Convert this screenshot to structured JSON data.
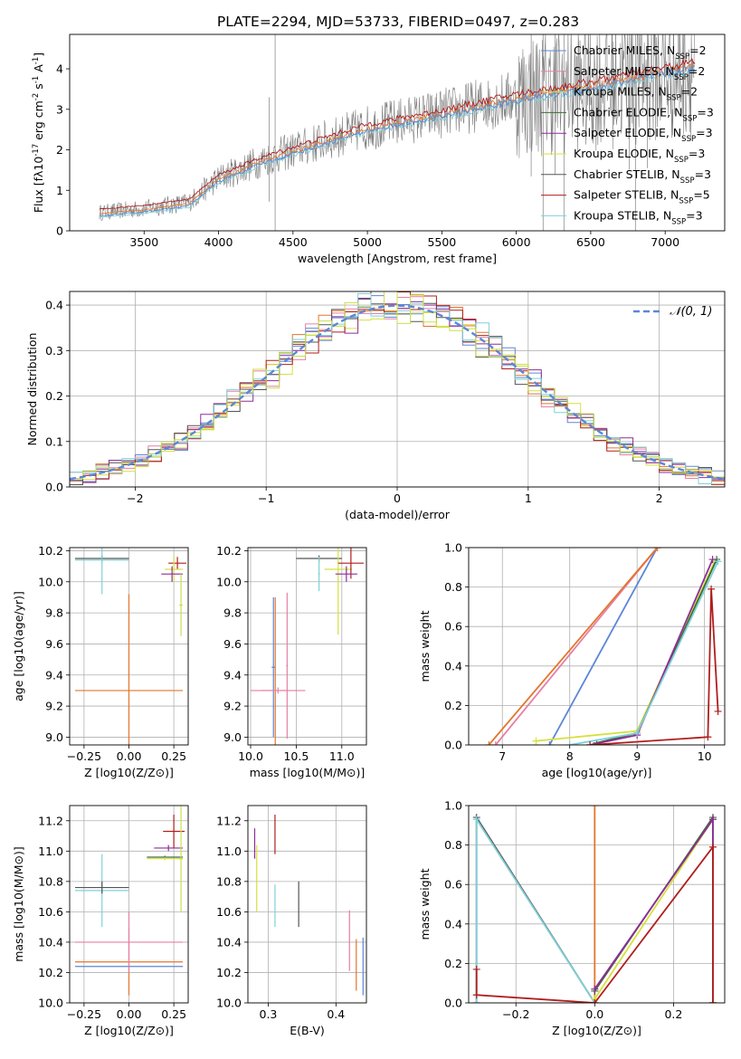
{
  "figure_title": "PLATE=2294, MJD=53733, FIBERID=0497, z=0.283",
  "colors": {
    "chabrier_miles": "#5b87d6",
    "salpeter_miles": "#e67fa6",
    "kroupa_miles": "#c8e04a",
    "chabrier_elodie": "#3e6b38",
    "salpeter_elodie": "#8e2c9a",
    "kroupa_elodie": "#d7e03c",
    "chabrier_stelib": "#555555",
    "salpeter_stelib": "#b01e1e",
    "kroupa_stelib": "#7fd0d8",
    "orange": "#e2762c",
    "data_gray": "#7f7f7f",
    "gaussian": "#5b87d6",
    "grid": "#b0b0b0"
  },
  "chart_data": [
    {
      "id": "spectrum",
      "type": "line",
      "title": "PLATE=2294, MJD=53733, FIBERID=0497, z=0.283",
      "xlabel": "wavelength [Angstrom, rest frame]",
      "ylabel": "Flux [f_λ 10^-17 erg cm^-2 s^-1 A^-1]",
      "xlim": [
        3000,
        7400
      ],
      "ylim": [
        0,
        4.85
      ],
      "xticks": [
        "3500",
        "4000",
        "4500",
        "5000",
        "5500",
        "6000",
        "6500",
        "7000"
      ],
      "yticks": [
        "0",
        "1",
        "2",
        "3",
        "4"
      ],
      "grid": false,
      "legend": "top-right",
      "legend_entries": [
        {
          "name": "Chabrier MILES, N_SSP=2",
          "color_key": "chabrier_miles"
        },
        {
          "name": "Salpeter MILES, N_SSP=2",
          "color_key": "salpeter_miles"
        },
        {
          "name": "Kroupa MILES, N_SSP=2",
          "color_key": "kroupa_miles"
        },
        {
          "name": "Chabrier ELODIE, N_SSP=3",
          "color_key": "chabrier_elodie"
        },
        {
          "name": "Salpeter ELODIE, N_SSP=3",
          "color_key": "salpeter_elodie"
        },
        {
          "name": "Kroupa ELODIE, N_SSP=3",
          "color_key": "kroupa_elodie"
        },
        {
          "name": "Chabrier STELIB, N_SSP=3",
          "color_key": "chabrier_stelib"
        },
        {
          "name": "Salpeter STELIB, N_SSP=5",
          "color_key": "salpeter_stelib"
        },
        {
          "name": "Kroupa STELIB, N_SSP=3",
          "color_key": "kroupa_stelib"
        }
      ],
      "data_range": [
        3200,
        7200
      ],
      "model_curve": {
        "x": [
          3200,
          3500,
          3800,
          4000,
          4300,
          4600,
          5000,
          5500,
          6000,
          6500,
          7000,
          7200
        ],
        "y": [
          0.45,
          0.55,
          0.7,
          1.3,
          1.75,
          2.1,
          2.55,
          2.9,
          3.3,
          3.6,
          3.95,
          4.1
        ]
      }
    },
    {
      "id": "residuals",
      "type": "line",
      "xlabel": "(data-model)/error",
      "ylabel": "Normed distribution",
      "xlim": [
        -2.5,
        2.5
      ],
      "ylim": [
        0,
        0.43
      ],
      "xticks": [
        "−2",
        "−1",
        "0",
        "1",
        "2"
      ],
      "yticks": [
        "0.0",
        "0.1",
        "0.2",
        "0.3",
        "0.4"
      ],
      "grid": true,
      "legend": "top-right",
      "legend_label": "𝒩(0, 1)",
      "bin_width": 0.1
    },
    {
      "id": "Z_vs_age",
      "type": "scatter",
      "xlabel": "Z [log10(Z/Z⊙)]",
      "ylabel": "age  [log10(age/yr)]",
      "xlim": [
        -0.33,
        0.33
      ],
      "ylim": [
        8.95,
        10.22
      ],
      "xticks": [
        "−0.25",
        "0.00",
        "0.25"
      ],
      "yticks": [
        "9.0",
        "9.2",
        "9.4",
        "9.6",
        "9.8",
        "10.0",
        "10.2"
      ],
      "grid": true,
      "points": [
        {
          "x": 0.0,
          "xerr": 0.3,
          "y": 9.3,
          "yerr": 0.62,
          "color_key": "orange"
        },
        {
          "x": -0.15,
          "xerr": 0.15,
          "y": 10.15,
          "yerr": 0.02,
          "color_key": "chabrier_stelib"
        },
        {
          "x": -0.15,
          "xerr": 0.15,
          "y": 10.14,
          "yerr": 0.22,
          "color_key": "kroupa_stelib"
        },
        {
          "x": 0.27,
          "xerr": 0.05,
          "y": 10.12,
          "yerr": 0.04,
          "color_key": "salpeter_stelib"
        },
        {
          "x": 0.25,
          "xerr": 0.05,
          "y": 10.08,
          "yerr": 0.08,
          "color_key": "kroupa_elodie"
        },
        {
          "x": 0.24,
          "xerr": 0.06,
          "y": 10.05,
          "yerr": 0.05,
          "color_key": "salpeter_elodie"
        },
        {
          "x": 0.29,
          "xerr": 0.01,
          "y": 9.85,
          "yerr": 0.2,
          "color_key": "kroupa_miles"
        }
      ]
    },
    {
      "id": "mass_vs_age",
      "type": "scatter",
      "xlabel": "mass [log10(M/M⊙)]",
      "ylabel": "",
      "xlim": [
        9.97,
        11.27
      ],
      "ylim": [
        8.95,
        10.22
      ],
      "xticks": [
        "10.0",
        "10.5",
        "11.0"
      ],
      "yticks": [
        "9.0",
        "9.2",
        "9.4",
        "9.6",
        "9.8",
        "10.0",
        "10.2"
      ],
      "grid": true,
      "points": [
        {
          "x": 10.25,
          "xerr": 0.02,
          "y": 9.45,
          "yerr": 0.45,
          "color_key": "chabrier_miles"
        },
        {
          "x": 10.27,
          "xerr": 0.15,
          "y": 9.3,
          "yerr": 0.6,
          "color_key": "orange"
        },
        {
          "x": 10.3,
          "xerr": 0.3,
          "y": 9.3,
          "yerr": 0.02,
          "color_key": "salpeter_miles"
        },
        {
          "x": 10.4,
          "xerr": 0.01,
          "y": 9.46,
          "yerr": 0.47,
          "color_key": "salpeter_miles"
        },
        {
          "x": 10.75,
          "xerr": 0.25,
          "y": 10.15,
          "yerr": 0.02,
          "color_key": "chabrier_stelib"
        },
        {
          "x": 10.75,
          "xerr": 0.01,
          "y": 10.05,
          "yerr": 0.11,
          "color_key": "kroupa_stelib"
        },
        {
          "x": 10.96,
          "xerr": 0.15,
          "y": 10.08,
          "yerr": 0.42,
          "color_key": "kroupa_elodie"
        },
        {
          "x": 11.1,
          "xerr": 0.14,
          "y": 10.12,
          "yerr": 0.1,
          "color_key": "salpeter_stelib"
        },
        {
          "x": 11.05,
          "xerr": 0.12,
          "y": 10.05,
          "yerr": 0.05,
          "color_key": "salpeter_elodie"
        }
      ]
    },
    {
      "id": "age_vs_weight",
      "type": "line",
      "xlabel": "age  [log10(age/yr)]",
      "ylabel": "mass weight",
      "xlim": [
        6.5,
        10.3
      ],
      "ylim": [
        0,
        1.0
      ],
      "xticks": [
        "7",
        "8",
        "9",
        "10"
      ],
      "yticks": [
        "0.0",
        "0.2",
        "0.4",
        "0.6",
        "0.8",
        "1.0"
      ],
      "grid": true,
      "series": [
        {
          "color_key": "chabrier_miles",
          "x": [
            7.7,
            9.3
          ],
          "y": [
            0.0,
            1.0
          ]
        },
        {
          "color_key": "salpeter_miles",
          "x": [
            6.9,
            9.3
          ],
          "y": [
            0.0,
            1.0
          ]
        },
        {
          "color_key": "orange",
          "x": [
            6.8,
            9.3
          ],
          "y": [
            0.0,
            1.0
          ]
        },
        {
          "color_key": "kroupa_elodie",
          "x": [
            7.5,
            9.0,
            10.15
          ],
          "y": [
            0.02,
            0.07,
            0.93
          ]
        },
        {
          "color_key": "chabrier_elodie",
          "x": [
            8.4,
            9.0,
            10.18
          ],
          "y": [
            0.01,
            0.06,
            0.94
          ]
        },
        {
          "color_key": "salpeter_elodie",
          "x": [
            8.3,
            9.0,
            10.12
          ],
          "y": [
            0.0,
            0.05,
            0.94
          ]
        },
        {
          "color_key": "kroupa_stelib",
          "x": [
            8.0,
            9.0,
            10.2
          ],
          "y": [
            0.0,
            0.06,
            0.93
          ]
        },
        {
          "color_key": "salpeter_stelib",
          "x": [
            8.3,
            10.05,
            10.1,
            10.2
          ],
          "y": [
            0.0,
            0.04,
            0.79,
            0.17
          ]
        }
      ]
    },
    {
      "id": "Z_vs_mass",
      "type": "scatter",
      "xlabel": "Z [log10(Z/Z⊙)]",
      "ylabel": "mass [log10(M/M⊙)]",
      "xlim": [
        -0.33,
        0.33
      ],
      "ylim": [
        10.0,
        11.3
      ],
      "xticks": [
        "−0.25",
        "0.00",
        "0.25"
      ],
      "yticks": [
        "10.0",
        "10.2",
        "10.4",
        "10.6",
        "10.8",
        "11.0",
        "11.2"
      ],
      "grid": true,
      "points": [
        {
          "x": 0.0,
          "xerr": 0.3,
          "y": 10.24,
          "yerr": 0.01,
          "color_key": "chabrier_miles"
        },
        {
          "x": 0.0,
          "xerr": 0.3,
          "y": 10.27,
          "yerr": 0.22,
          "color_key": "orange"
        },
        {
          "x": 0.0,
          "xerr": 0.3,
          "y": 10.4,
          "yerr": 0.2,
          "color_key": "salpeter_miles"
        },
        {
          "x": -0.15,
          "xerr": 0.15,
          "y": 10.74,
          "yerr": 0.24,
          "color_key": "kroupa_stelib"
        },
        {
          "x": -0.15,
          "xerr": 0.15,
          "y": 10.76,
          "yerr": 0.04,
          "color_key": "chabrier_stelib"
        },
        {
          "x": 0.25,
          "xerr": 0.06,
          "y": 11.13,
          "yerr": 0.11,
          "color_key": "salpeter_stelib"
        },
        {
          "x": 0.22,
          "xerr": 0.08,
          "y": 11.02,
          "yerr": 0.02,
          "color_key": "salpeter_elodie"
        },
        {
          "x": 0.2,
          "xerr": 0.1,
          "y": 10.96,
          "yerr": 0.01,
          "color_key": "chabrier_elodie"
        },
        {
          "x": 0.2,
          "xerr": 0.1,
          "y": 10.95,
          "yerr": 0.01,
          "color_key": "kroupa_elodie"
        },
        {
          "x": 0.29,
          "xerr": 0.01,
          "y": 10.95,
          "yerr": 0.35,
          "color_key": "kroupa_miles"
        }
      ]
    },
    {
      "id": "ebv_vs_mass",
      "type": "scatter",
      "xlabel": "E(B-V)",
      "ylabel": "",
      "xlim": [
        0.27,
        0.445
      ],
      "ylim": [
        10.0,
        11.3
      ],
      "xticks": [
        "0.3",
        "0.4"
      ],
      "yticks": [
        "10.0",
        "10.2",
        "10.4",
        "10.6",
        "10.8",
        "11.0",
        "11.2"
      ],
      "grid": true,
      "points": [
        {
          "x": 0.28,
          "yerr": 0.1,
          "y": 11.05,
          "color_key": "salpeter_elodie"
        },
        {
          "x": 0.283,
          "yerr": 0.22,
          "y": 10.82,
          "color_key": "kroupa_elodie"
        },
        {
          "x": 0.31,
          "yerr": 0.13,
          "y": 11.11,
          "color_key": "salpeter_stelib"
        },
        {
          "x": 0.31,
          "yerr": 0.14,
          "y": 10.64,
          "color_key": "kroupa_stelib"
        },
        {
          "x": 0.345,
          "yerr": 0.15,
          "y": 10.65,
          "color_key": "chabrier_stelib"
        },
        {
          "x": 0.42,
          "yerr": 0.2,
          "y": 10.41,
          "color_key": "salpeter_miles"
        },
        {
          "x": 0.43,
          "yerr": 0.17,
          "y": 10.25,
          "color_key": "orange"
        },
        {
          "x": 0.44,
          "yerr": 0.19,
          "y": 10.24,
          "color_key": "chabrier_miles"
        }
      ]
    },
    {
      "id": "Z_vs_weight",
      "type": "line",
      "xlabel": "Z [log10(Z/Z⊙)]",
      "ylabel": "mass weight",
      "xlim": [
        -0.32,
        0.33
      ],
      "ylim": [
        0,
        1.0
      ],
      "xticks": [
        "−0.2",
        "0.0",
        "0.2"
      ],
      "yticks": [
        "0.0",
        "0.2",
        "0.4",
        "0.6",
        "0.8",
        "1.0"
      ],
      "grid": true,
      "series": [
        {
          "color_key": "orange",
          "x": [
            0.0,
            0.0
          ],
          "y": [
            0.0,
            1.0
          ]
        },
        {
          "color_key": "chabrier_stelib",
          "x": [
            -0.3,
            -0.3,
            0.0
          ],
          "y": [
            0.0,
            0.94,
            0.0
          ]
        },
        {
          "color_key": "kroupa_stelib",
          "x": [
            -0.3,
            -0.3,
            0.0
          ],
          "y": [
            0.0,
            0.93,
            0.0
          ]
        },
        {
          "color_key": "kroupa_elodie",
          "x": [
            0.0,
            0.3,
            0.3
          ],
          "y": [
            0.02,
            0.93,
            0.0
          ]
        },
        {
          "color_key": "chabrier_elodie",
          "x": [
            0.0,
            0.3,
            0.3
          ],
          "y": [
            0.06,
            0.94,
            0.0
          ]
        },
        {
          "color_key": "salpeter_elodie",
          "x": [
            0.0,
            0.3,
            0.3
          ],
          "y": [
            0.07,
            0.93,
            0.0
          ]
        },
        {
          "color_key": "salpeter_stelib",
          "x": [
            -0.3,
            -0.3,
            0.0,
            0.3,
            0.3
          ],
          "y": [
            0.17,
            0.04,
            0.0,
            0.79,
            0.0
          ]
        }
      ]
    }
  ]
}
